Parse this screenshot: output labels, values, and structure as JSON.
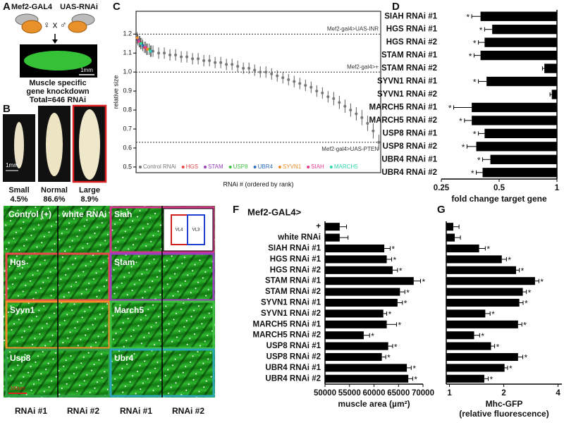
{
  "panel_a": {
    "label": "A",
    "left_parent": "Mef2-GAL4",
    "right_parent": "UAS-RNAi",
    "cross": "♀ x ♂",
    "scale_bar": "1mm",
    "caption": [
      "Muscle specific",
      "gene knockdown",
      "Total=646 RNAi"
    ]
  },
  "panel_b": {
    "label": "B",
    "scale_bar": "1mm",
    "classes": [
      {
        "name": "Small",
        "percent": "4.5%"
      },
      {
        "name": "Normal",
        "percent": "86.6%"
      },
      {
        "name": "Large",
        "percent": "8.9%"
      }
    ]
  },
  "panel_e": {
    "label": "E",
    "tiles": [
      "Control (+)",
      "white RNAi",
      "Siah",
      "Hgs",
      "Stam",
      "Syvn1",
      "March5",
      "Usp8",
      "Ubr4"
    ],
    "inset": [
      "VL4",
      "VL3"
    ],
    "columns": [
      "RNAi #1",
      "RNAi #2",
      "RNAi #1",
      "RNAi #2"
    ],
    "scale_bar": "100µm"
  },
  "chart_data": [
    {
      "panel": "C",
      "type": "scatter",
      "ylabel": "relative size",
      "xlabel": "RNAi # (ordered by rank)",
      "xlim": [
        0,
        650
      ],
      "ylim": [
        0.47,
        1.32
      ],
      "yticks": [
        0.5,
        0.6,
        0.7,
        0.8,
        0.9,
        {
          "value": 1,
          "label": "1.0"
        },
        1.1,
        1.2
      ],
      "reference_lines": [
        {
          "value": 1.2,
          "label": "Mef2-gal4>UAS-INR"
        },
        {
          "value": 1,
          "label": "Mef2-gal4>+"
        },
        {
          "value": 0.63,
          "label": "Mef2-gal4>UAS-PTEN"
        }
      ],
      "series": [
        {
          "name": "Control RNAi",
          "color": "#777777",
          "x": [
            45,
            60,
            75,
            90,
            105,
            120,
            135,
            150,
            165,
            180,
            195,
            210,
            225,
            240,
            255,
            270,
            285,
            300,
            315,
            330,
            345,
            360,
            375,
            390,
            405,
            420,
            435,
            450,
            465,
            480,
            495,
            510,
            525,
            540,
            555,
            570,
            585,
            600,
            615,
            630,
            645
          ],
          "values": [
            1.11,
            1.1,
            1.1,
            1.09,
            1.09,
            1.08,
            1.08,
            1.07,
            1.07,
            1.06,
            1.06,
            1.05,
            1.05,
            1.04,
            1.04,
            1.03,
            1.02,
            1.02,
            1.01,
            1.0,
            1.0,
            0.99,
            0.98,
            0.97,
            0.96,
            0.95,
            0.94,
            0.93,
            0.92,
            0.9,
            0.89,
            0.87,
            0.86,
            0.84,
            0.82,
            0.8,
            0.78,
            0.76,
            0.73,
            0.69,
            0.63
          ],
          "errors": [
            0.03,
            0.03,
            0.03,
            0.03,
            0.03,
            0.03,
            0.03,
            0.03,
            0.03,
            0.03,
            0.03,
            0.03,
            0.03,
            0.03,
            0.03,
            0.03,
            0.03,
            0.03,
            0.03,
            0.03,
            0.03,
            0.03,
            0.03,
            0.03,
            0.03,
            0.03,
            0.03,
            0.03,
            0.03,
            0.03,
            0.03,
            0.03,
            0.035,
            0.035,
            0.035,
            0.035,
            0.035,
            0.04,
            0.04,
            0.04,
            0.04
          ]
        },
        {
          "name": "HGS",
          "color": "#e8474c",
          "x": [
            10,
            22
          ],
          "values": [
            1.16,
            1.13
          ],
          "errors": [
            0.03,
            0.03
          ]
        },
        {
          "name": "STAM",
          "color": "#9b3fbf",
          "x": [
            5,
            28
          ],
          "values": [
            1.17,
            1.12
          ],
          "errors": [
            0.03,
            0.03
          ]
        },
        {
          "name": "USP8",
          "color": "#3fbf3f",
          "x": [
            15,
            35
          ],
          "values": [
            1.15,
            1.12
          ],
          "errors": [
            0.03,
            0.03
          ]
        },
        {
          "name": "UBR4",
          "color": "#2f6fbf",
          "x": [
            18,
            40
          ],
          "values": [
            1.14,
            1.11
          ],
          "errors": [
            0.03,
            0.03
          ]
        },
        {
          "name": "SYVN1",
          "color": "#f08c2a",
          "x": [
            3,
            30
          ],
          "values": [
            1.18,
            1.12
          ],
          "errors": [
            0.03,
            0.03
          ]
        },
        {
          "name": "SIAH",
          "color": "#e83b8c",
          "x": [
            8,
            25
          ],
          "values": [
            1.16,
            1.13
          ],
          "errors": [
            0.03,
            0.03
          ]
        },
        {
          "name": "MARCH5",
          "color": "#2fd6a8",
          "x": [
            12,
            38
          ],
          "values": [
            1.15,
            1.11
          ],
          "errors": [
            0.03,
            0.03
          ]
        }
      ]
    },
    {
      "panel": "D",
      "type": "bar",
      "orientation": "horizontal",
      "bar_direction": "left",
      "log_scale": true,
      "color": "#000000",
      "xlabel": "fold change target gene",
      "xlim": [
        0.25,
        1
      ],
      "xticks": [
        0.25,
        0.5,
        1
      ],
      "categories": [
        "SIAH RNAi #1",
        "HGS RNAi #1",
        "HGS RNAi #2",
        "STAM RNAi #1",
        "STAM RNAi #2",
        "SYVN1 RNAi #1",
        "SYVN1 RNAi #2",
        "MARCH5 RNAi #1",
        "MARCH5 RNAi #2",
        "USP8 RNAi #1",
        "USP8 RNAi #2",
        "UBR4 RNAi #1",
        "UBR4 RNAi #2"
      ],
      "values": [
        0.4,
        0.46,
        0.42,
        0.4,
        0.86,
        0.43,
        0.94,
        0.36,
        0.36,
        0.42,
        0.38,
        0.45,
        0.41
      ],
      "errors": [
        0.04,
        0.04,
        0.03,
        0.03,
        0.02,
        0.04,
        0.02,
        0.07,
        0.03,
        0.03,
        0.04,
        0.04,
        0.03
      ],
      "significance": [
        "*",
        "*",
        "*",
        "*",
        null,
        "*",
        null,
        "*",
        "*",
        "*",
        "*",
        "*",
        "*"
      ]
    },
    {
      "panel": "F",
      "type": "bar",
      "orientation": "horizontal",
      "bar_direction": "right",
      "title": "Mef2-GAL4>",
      "color": "#000000",
      "xlabel": "muscle area (µm²)",
      "xlim": [
        50000,
        70000
      ],
      "xticks": [
        50000,
        55000,
        60000,
        65000,
        70000
      ],
      "categories": [
        "+",
        "white RNAi",
        "SIAH RNAi #1",
        "HGS RNAi #1",
        "HGS RNAi #2",
        "STAM RNAi #1",
        "STAM RNAi #2",
        "SYVN1 RNAi #1",
        "SYVN1 RNAi #2",
        "MARCH5 RNAi #1",
        "MARCH5 RNAi #2",
        "USP8 RNAi #1",
        "USP8 RNAi #2",
        "UBR4 RNAi #1",
        "UBR4 RNAi #2"
      ],
      "values": [
        53000,
        53000,
        62100,
        62600,
        63800,
        68100,
        65300,
        64800,
        61900,
        62600,
        57900,
        62900,
        61600,
        66700,
        67000
      ],
      "errors": [
        1400,
        1700,
        1200,
        1000,
        1000,
        1400,
        1000,
        1000,
        700,
        2000,
        1200,
        900,
        800,
        900,
        900
      ],
      "significance": [
        null,
        null,
        "*",
        "*",
        "*",
        "*",
        "*",
        "*",
        "*",
        "*",
        "*",
        "*",
        "*",
        "*",
        "*"
      ]
    },
    {
      "panel": "G",
      "type": "bar",
      "orientation": "horizontal",
      "bar_direction": "right",
      "log_scale": true,
      "color": "#000000",
      "xlabel": [
        "Mhc-GFP",
        "(relative fluorescence)"
      ],
      "xlim": [
        0.96,
        4.2
      ],
      "xticks": [
        1,
        2,
        4
      ],
      "values": [
        1.05,
        1.07,
        1.46,
        1.95,
        2.34,
        2.98,
        2.55,
        2.44,
        1.58,
        2.4,
        1.37,
        1.7,
        2.4,
        2.02,
        1.56
      ],
      "errors": [
        0.08,
        0.08,
        0.12,
        0.12,
        0.1,
        0.15,
        0.12,
        0.12,
        0.1,
        0.12,
        0.1,
        0.08,
        0.15,
        0.08,
        0.08
      ],
      "significance": [
        null,
        null,
        "*",
        "*",
        "*",
        "*",
        "*",
        "*",
        "*",
        "*",
        "*",
        "*",
        "*",
        "*",
        "*"
      ]
    }
  ]
}
